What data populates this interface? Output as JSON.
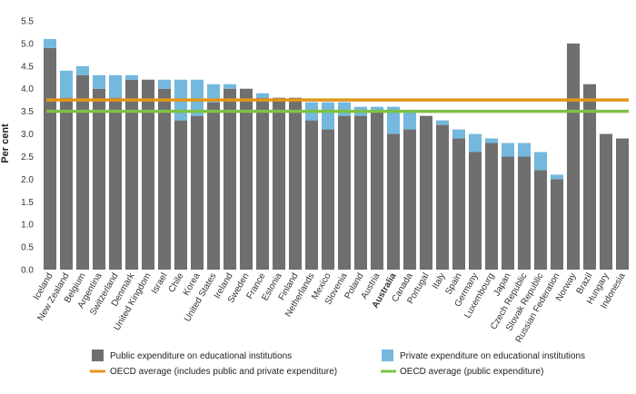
{
  "chart_data": {
    "type": "bar",
    "stacked": true,
    "ylabel": "Per cent",
    "xlabel": "",
    "ylim": [
      0,
      5.5
    ],
    "yticks": [
      "0.0",
      "0.5",
      "1.0",
      "1.5",
      "2.0",
      "2.5",
      "3.0",
      "3.5",
      "4.0",
      "4.5",
      "5.0",
      "5.5"
    ],
    "grid": false,
    "legend_position": "bottom",
    "highlight_category": "Australia",
    "categories": [
      "Iceland",
      "New Zealand",
      "Belgium",
      "Argentina",
      "Switzerland",
      "Denmark",
      "United Kingdom",
      "Israel",
      "Chile",
      "Korea",
      "United States",
      "Ireland",
      "Sweden",
      "France",
      "Estonia",
      "Finland",
      "Netherlands",
      "Mexico",
      "Slovenia",
      "Poland",
      "Austria",
      "Australia",
      "Canada",
      "Portugal",
      "Italy",
      "Spain",
      "Germany",
      "Luxembourg",
      "Japan",
      "Czech Republic",
      "Slovak Republic",
      "Russian Federation",
      "Norway",
      "Brazil",
      "Hungary",
      "Indonesia"
    ],
    "series": [
      {
        "name": "Public expenditure on educational institutions",
        "color": "#706f6f",
        "values": [
          4.9,
          3.8,
          4.3,
          4.0,
          3.8,
          4.2,
          4.2,
          4.0,
          3.3,
          3.4,
          3.7,
          4.0,
          4.0,
          3.8,
          3.8,
          3.8,
          3.3,
          3.1,
          3.4,
          3.4,
          3.5,
          3.0,
          3.1,
          3.4,
          3.2,
          2.9,
          2.6,
          2.8,
          2.5,
          2.5,
          2.2,
          2.0,
          5.0,
          4.1,
          3.0,
          2.9
        ]
      },
      {
        "name": "Private expenditure on educational institutions",
        "color": "#74b8de",
        "values": [
          0.2,
          0.6,
          0.2,
          0.3,
          0.5,
          0.1,
          0.0,
          0.2,
          0.9,
          0.8,
          0.4,
          0.1,
          0.0,
          0.1,
          0.0,
          0.0,
          0.4,
          0.6,
          0.3,
          0.2,
          0.1,
          0.6,
          0.4,
          0.0,
          0.1,
          0.2,
          0.4,
          0.1,
          0.3,
          0.3,
          0.4,
          0.1,
          0.0,
          0.0,
          0.0,
          0.0
        ]
      }
    ],
    "reference_lines": [
      {
        "name": "OECD average (includes public and private expenditure)",
        "value": 3.75,
        "color": "#e3961b"
      },
      {
        "name": "OECD average (public expenditure)",
        "value": 3.5,
        "color": "#7dc243"
      }
    ]
  }
}
